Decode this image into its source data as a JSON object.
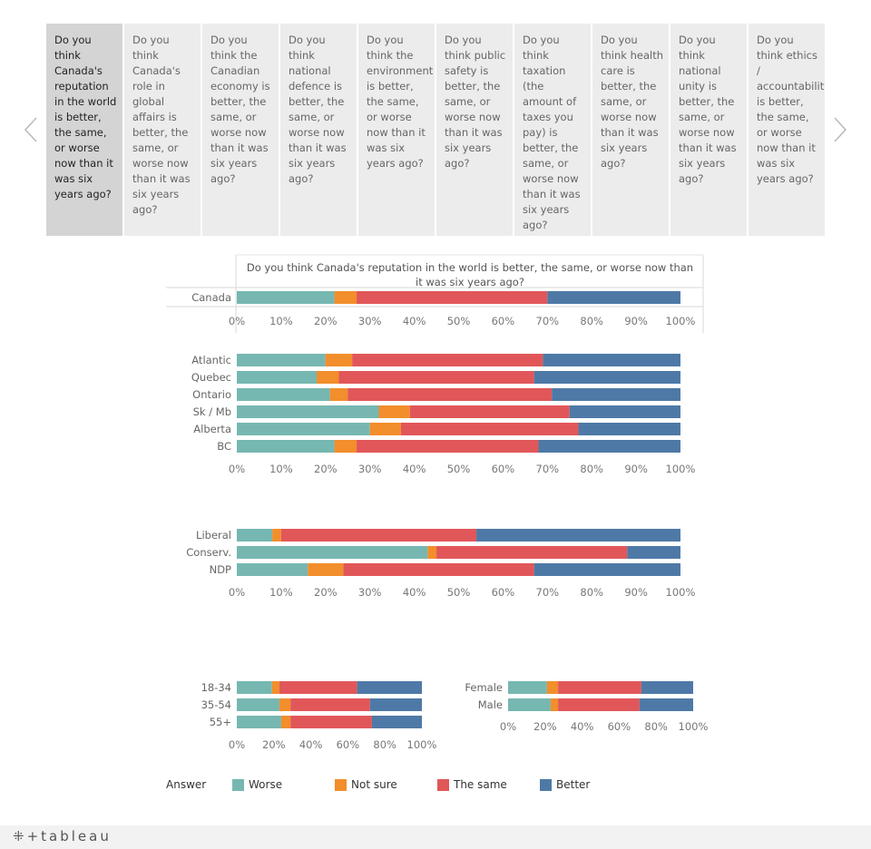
{
  "tabs": [
    "Do you think Canada's reputation in the world is better, the same, or worse now than it was six years ago?",
    "Do you think Canada's role in global affairs is better, the same, or worse now than it was six years ago?",
    "Do you think the Canadian economy is better, the same, or worse now than it was six years ago?",
    "Do you think national defence is better, the same, or worse now than it was six years ago?",
    "Do you think the environment is better, the same, or worse now than it was six years ago?",
    "Do you think public safety is better, the same, or worse now than it was six years ago?",
    "Do you think taxation (the amount of taxes you pay) is better, the same, or worse now than it was six years ago?",
    "Do you think health care is better, the same, or worse now than it was six years ago?",
    "Do you think national unity is better, the same, or worse now than it was six years ago?",
    "Do you think ethics / accountability is better, the same, or worse now than it was six years ago?"
  ],
  "active_tab": 0,
  "legend": {
    "title": "Answer",
    "items": [
      {
        "label": "Worse",
        "color": "#76b7b2"
      },
      {
        "label": "Not sure",
        "color": "#f28e2b"
      },
      {
        "label": "The same",
        "color": "#e15759"
      },
      {
        "label": "Better",
        "color": "#4e79a7"
      }
    ]
  },
  "footer": {
    "logo": "tableau"
  },
  "chart_data": [
    {
      "type": "bar",
      "orientation": "horizontal-stacked-percent",
      "title": "Do you think Canada's reputation in the world is better, the same, or worse now than it was six years ago?",
      "categories": [
        "Canada"
      ],
      "series": [
        {
          "name": "Worse",
          "values": [
            22
          ]
        },
        {
          "name": "Not sure",
          "values": [
            5
          ]
        },
        {
          "name": "The same",
          "values": [
            43
          ]
        },
        {
          "name": "Better",
          "values": [
            30
          ]
        }
      ],
      "ticks": [
        "0%",
        "10%",
        "20%",
        "30%",
        "40%",
        "50%",
        "60%",
        "70%",
        "80%",
        "90%",
        "100%"
      ],
      "xlim": [
        0,
        100
      ]
    },
    {
      "type": "bar",
      "orientation": "horizontal-stacked-percent",
      "categories": [
        "Atlantic",
        "Quebec",
        "Ontario",
        "Sk / Mb",
        "Alberta",
        "BC"
      ],
      "series": [
        {
          "name": "Worse",
          "values": [
            20,
            18,
            21,
            32,
            30,
            22
          ]
        },
        {
          "name": "Not sure",
          "values": [
            6,
            5,
            4,
            7,
            7,
            5
          ]
        },
        {
          "name": "The same",
          "values": [
            43,
            44,
            46,
            36,
            40,
            41
          ]
        },
        {
          "name": "Better",
          "values": [
            31,
            33,
            29,
            25,
            23,
            32
          ]
        }
      ],
      "ticks": [
        "0%",
        "10%",
        "20%",
        "30%",
        "40%",
        "50%",
        "60%",
        "70%",
        "80%",
        "90%",
        "100%"
      ],
      "xlim": [
        0,
        100
      ]
    },
    {
      "type": "bar",
      "orientation": "horizontal-stacked-percent",
      "categories": [
        "Liberal",
        "Conserv.",
        "NDP"
      ],
      "series": [
        {
          "name": "Worse",
          "values": [
            8,
            43,
            16
          ]
        },
        {
          "name": "Not sure",
          "values": [
            2,
            2,
            8
          ]
        },
        {
          "name": "The same",
          "values": [
            44,
            43,
            43
          ]
        },
        {
          "name": "Better",
          "values": [
            46,
            12,
            33
          ]
        }
      ],
      "ticks": [
        "0%",
        "10%",
        "20%",
        "30%",
        "40%",
        "50%",
        "60%",
        "70%",
        "80%",
        "90%",
        "100%"
      ],
      "xlim": [
        0,
        100
      ]
    },
    {
      "type": "bar",
      "orientation": "horizontal-stacked-percent",
      "categories": [
        "18-34",
        "35-54",
        "55+"
      ],
      "series": [
        {
          "name": "Worse",
          "values": [
            19,
            23,
            24
          ]
        },
        {
          "name": "Not sure",
          "values": [
            4,
            6,
            5
          ]
        },
        {
          "name": "The same",
          "values": [
            42,
            43,
            44
          ]
        },
        {
          "name": "Better",
          "values": [
            35,
            28,
            27
          ]
        }
      ],
      "ticks": [
        "0%",
        "20%",
        "40%",
        "60%",
        "80%",
        "100%"
      ],
      "xlim": [
        0,
        100
      ]
    },
    {
      "type": "bar",
      "orientation": "horizontal-stacked-percent",
      "categories": [
        "Female",
        "Male"
      ],
      "series": [
        {
          "name": "Worse",
          "values": [
            21,
            23
          ]
        },
        {
          "name": "Not sure",
          "values": [
            6,
            4
          ]
        },
        {
          "name": "The same",
          "values": [
            45,
            44
          ]
        },
        {
          "name": "Better",
          "values": [
            28,
            29
          ]
        }
      ],
      "ticks": [
        "0%",
        "20%",
        "40%",
        "60%",
        "80%",
        "100%"
      ],
      "xlim": [
        0,
        100
      ]
    }
  ]
}
